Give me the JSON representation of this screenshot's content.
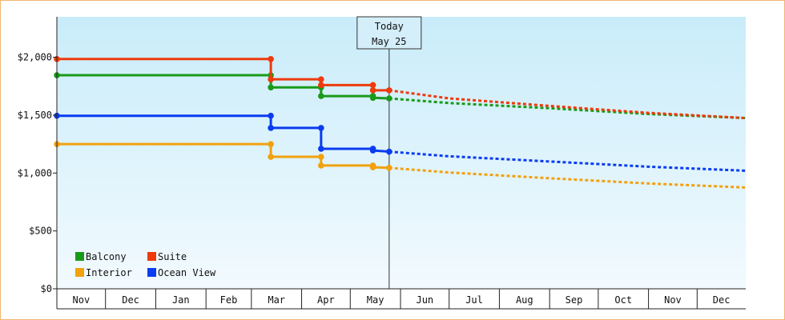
{
  "chart_data": {
    "type": "line",
    "style": "step",
    "x_unit": "date",
    "x_axis_months": [
      "Nov",
      "Dec",
      "Jan",
      "Feb",
      "Mar",
      "Apr",
      "May",
      "Jun",
      "Jul",
      "Aug",
      "Sep",
      "Oct",
      "Nov",
      "Dec"
    ],
    "x_range": [
      "2024-11-01",
      "2025-12-31"
    ],
    "y_ticks": [
      "$0",
      "$500",
      "$1,000",
      "$1,500",
      "$2,000"
    ],
    "y_tick_values": [
      0,
      500,
      1000,
      1500,
      2000
    ],
    "ylim": [
      0,
      2350
    ],
    "today_marker": {
      "label": "Today",
      "date_label": "May 25",
      "date": "2025-05-25"
    },
    "legend": {
      "placement": "bottom-left"
    },
    "series": [
      {
        "name": "Balcony",
        "color": "#1a9a1a",
        "actual": [
          [
            "2024-11-01",
            1845
          ],
          [
            "2025-03-13",
            1845
          ],
          [
            "2025-03-13",
            1740
          ],
          [
            "2025-04-13",
            1740
          ],
          [
            "2025-04-13",
            1665
          ],
          [
            "2025-05-15",
            1665
          ],
          [
            "2025-05-15",
            1650
          ],
          [
            "2025-05-25",
            1645
          ]
        ],
        "projected": [
          [
            "2025-05-25",
            1645
          ],
          [
            "2025-07-01",
            1605
          ],
          [
            "2025-09-01",
            1560
          ],
          [
            "2025-11-01",
            1510
          ],
          [
            "2025-12-31",
            1475
          ]
        ]
      },
      {
        "name": "Suite",
        "color": "#ee3a0c",
        "actual": [
          [
            "2024-11-01",
            1985
          ],
          [
            "2025-03-13",
            1985
          ],
          [
            "2025-03-13",
            1810
          ],
          [
            "2025-04-13",
            1810
          ],
          [
            "2025-04-13",
            1760
          ],
          [
            "2025-05-15",
            1760
          ],
          [
            "2025-05-15",
            1715
          ],
          [
            "2025-05-25",
            1715
          ]
        ],
        "projected": [
          [
            "2025-05-25",
            1715
          ],
          [
            "2025-07-01",
            1645
          ],
          [
            "2025-09-01",
            1580
          ],
          [
            "2025-11-01",
            1520
          ],
          [
            "2025-12-31",
            1475
          ]
        ]
      },
      {
        "name": "Interior",
        "color": "#f2a10f",
        "actual": [
          [
            "2024-11-01",
            1250
          ],
          [
            "2025-03-13",
            1250
          ],
          [
            "2025-03-13",
            1140
          ],
          [
            "2025-04-13",
            1140
          ],
          [
            "2025-04-13",
            1065
          ],
          [
            "2025-05-15",
            1065
          ],
          [
            "2025-05-15",
            1050
          ],
          [
            "2025-05-25",
            1045
          ]
        ],
        "projected": [
          [
            "2025-05-25",
            1045
          ],
          [
            "2025-07-01",
            1005
          ],
          [
            "2025-09-01",
            955
          ],
          [
            "2025-11-01",
            910
          ],
          [
            "2025-12-31",
            875
          ]
        ]
      },
      {
        "name": "Ocean View",
        "color": "#0a3cf0",
        "actual": [
          [
            "2024-11-01",
            1495
          ],
          [
            "2025-03-13",
            1495
          ],
          [
            "2025-03-13",
            1390
          ],
          [
            "2025-04-13",
            1390
          ],
          [
            "2025-04-13",
            1210
          ],
          [
            "2025-05-15",
            1210
          ],
          [
            "2025-05-15",
            1195
          ],
          [
            "2025-05-25",
            1185
          ]
        ],
        "projected": [
          [
            "2025-05-25",
            1185
          ],
          [
            "2025-07-01",
            1145
          ],
          [
            "2025-09-01",
            1100
          ],
          [
            "2025-11-01",
            1055
          ],
          [
            "2025-12-31",
            1020
          ]
        ]
      }
    ]
  }
}
